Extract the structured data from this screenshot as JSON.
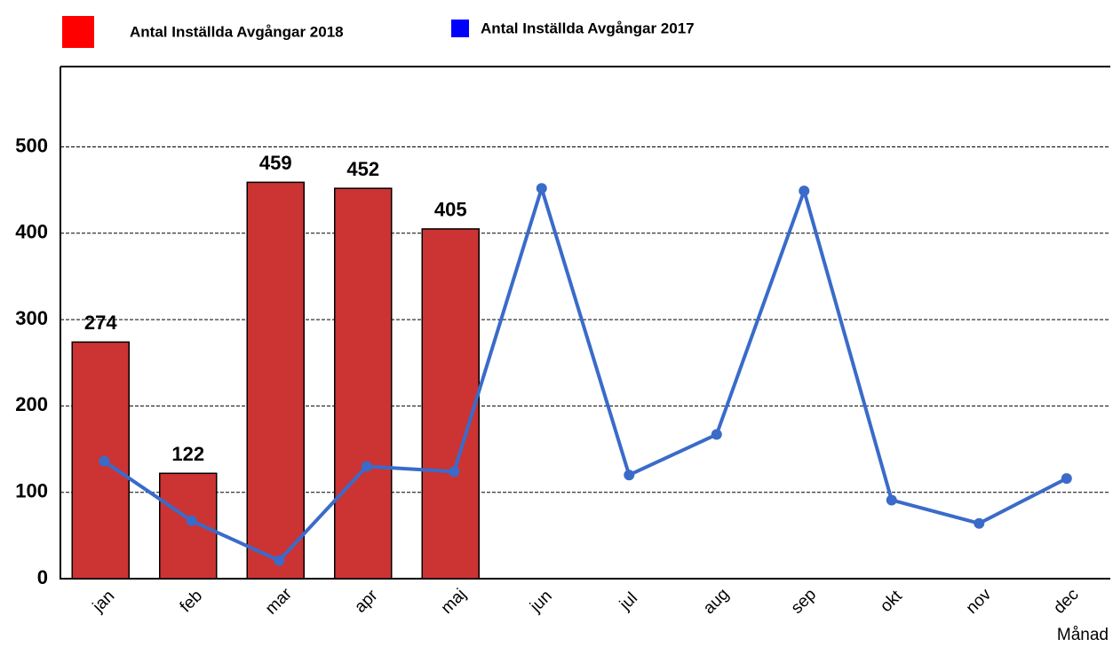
{
  "chart_data": {
    "type": "bar+line",
    "categories": [
      "jan",
      "feb",
      "mar",
      "apr",
      "maj",
      "jun",
      "jul",
      "aug",
      "sep",
      "okt",
      "nov",
      "dec"
    ],
    "series": [
      {
        "name": "Antal Inställda Avgångar 2018",
        "type": "bar",
        "color": "#cc3333",
        "legend_color": "#ff0000",
        "values": [
          274,
          122,
          459,
          452,
          405,
          null,
          null,
          null,
          null,
          null,
          null,
          null
        ]
      },
      {
        "name": "Antal Inställda Avgångar 2017",
        "type": "line",
        "color": "#3a6bc9",
        "legend_color": "#0000ff",
        "values": [
          136,
          67,
          21,
          130,
          124,
          452,
          120,
          167,
          449,
          91,
          64,
          116
        ]
      }
    ],
    "x_label": "Månad",
    "ylim": [
      0,
      593
    ],
    "yticks": [
      0,
      100,
      200,
      300,
      400,
      500
    ],
    "grid": true
  }
}
